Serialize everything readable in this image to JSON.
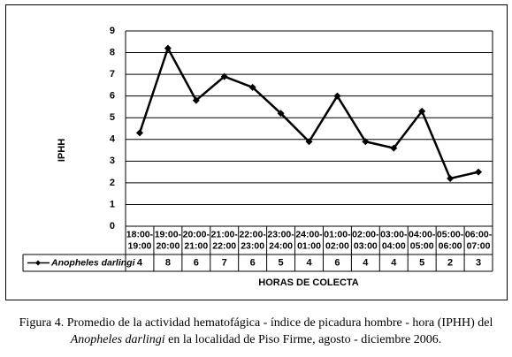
{
  "chart_data": {
    "type": "line",
    "categories": [
      "18:00-\n19:00",
      "19:00-\n20:00",
      "20:00-\n21:00",
      "21:00-\n22:00",
      "22:00-\n23:00",
      "23:00-\n24:00",
      "24:00-\n01:00",
      "01:00-\n02:00",
      "02:00-\n03:00",
      "03:00-\n04:00",
      "04:00-\n05:00",
      "05:00-\n06:00",
      "06:00-\n07:00"
    ],
    "series": [
      {
        "name": "Anopheles darlingi",
        "color": "#000000",
        "values": [
          4.3,
          8.2,
          5.8,
          6.9,
          6.4,
          5.2,
          3.9,
          6.0,
          3.9,
          3.6,
          5.3,
          2.2,
          2.5
        ],
        "value_labels": [
          "4",
          "8",
          "6",
          "7",
          "6",
          "5",
          "4",
          "6",
          "4",
          "4",
          "5",
          "2",
          "3"
        ]
      }
    ],
    "ylim": [
      0,
      9
    ],
    "yticks": [
      0,
      1,
      2,
      3,
      4,
      5,
      6,
      7,
      8,
      9
    ],
    "ylabel": "IPHH",
    "xlabel": "HORAS DE COLECTA",
    "grid": true
  },
  "caption": {
    "text_before": "Figura 4. Promedio de la actividad hematofágica - índice de picadura hombre - hora (IPHH) del",
    "species": "Anopheles darlingi",
    "text_after": "en la localidad de Piso Firme, agosto - diciembre 2006."
  }
}
